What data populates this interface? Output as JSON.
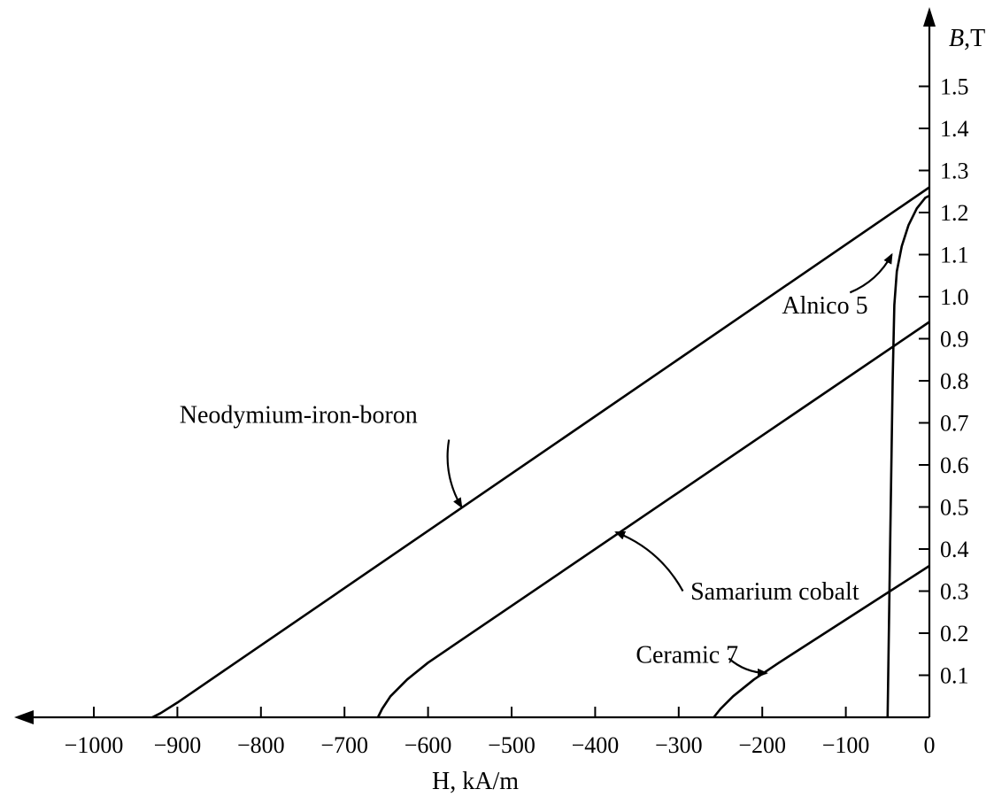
{
  "chart_data": {
    "type": "line",
    "xlabel": "H, kA/m",
    "ylabel_var": "B",
    "ylabel_unit": ",T",
    "xlim": [
      -1080,
      0
    ],
    "ylim": [
      0,
      1.6
    ],
    "grid": false,
    "x_ticks": [
      {
        "value": -1000,
        "label": "−1000"
      },
      {
        "value": -900,
        "label": "−900"
      },
      {
        "value": -800,
        "label": "−800"
      },
      {
        "value": -700,
        "label": "−700"
      },
      {
        "value": -600,
        "label": "−600"
      },
      {
        "value": -500,
        "label": "−500"
      },
      {
        "value": -400,
        "label": "−400"
      },
      {
        "value": -300,
        "label": "−300"
      },
      {
        "value": -200,
        "label": "−200"
      },
      {
        "value": -100,
        "label": "−100"
      },
      {
        "value": 0,
        "label": "0"
      }
    ],
    "y_ticks": [
      {
        "value": 0.1,
        "label": "0.1"
      },
      {
        "value": 0.2,
        "label": "0.2"
      },
      {
        "value": 0.3,
        "label": "0.3"
      },
      {
        "value": 0.4,
        "label": "0.4"
      },
      {
        "value": 0.5,
        "label": "0.5"
      },
      {
        "value": 0.6,
        "label": "0.6"
      },
      {
        "value": 0.7,
        "label": "0.7"
      },
      {
        "value": 0.8,
        "label": "0.8"
      },
      {
        "value": 0.9,
        "label": "0.9"
      },
      {
        "value": 1.0,
        "label": "1.0"
      },
      {
        "value": 1.1,
        "label": "1.1"
      },
      {
        "value": 1.2,
        "label": "1.2"
      },
      {
        "value": 1.3,
        "label": "1.3"
      },
      {
        "value": 1.4,
        "label": "1.4"
      },
      {
        "value": 1.5,
        "label": "1.5"
      }
    ],
    "series": [
      {
        "name": "Neodymium-iron-boron",
        "points": [
          [
            -930,
            0
          ],
          [
            -920,
            0.01
          ],
          [
            -900,
            0.035
          ],
          [
            0,
            1.26
          ]
        ]
      },
      {
        "name": "Samarium cobalt",
        "points": [
          [
            -660,
            0
          ],
          [
            -655,
            0.02
          ],
          [
            -645,
            0.05
          ],
          [
            -625,
            0.09
          ],
          [
            -600,
            0.13
          ],
          [
            0,
            0.94
          ]
        ]
      },
      {
        "name": "Ceramic 7",
        "points": [
          [
            -258,
            0
          ],
          [
            -250,
            0.02
          ],
          [
            -235,
            0.05
          ],
          [
            -210,
            0.09
          ],
          [
            -180,
            0.13
          ],
          [
            0,
            0.36
          ]
        ]
      },
      {
        "name": "Alnico 5",
        "points": [
          [
            -50,
            0
          ],
          [
            -47,
            0.4
          ],
          [
            -44,
            0.8
          ],
          [
            -42,
            0.98
          ],
          [
            -39,
            1.06
          ],
          [
            -33,
            1.12
          ],
          [
            -25,
            1.17
          ],
          [
            -15,
            1.21
          ],
          [
            -5,
            1.235
          ],
          [
            0,
            1.24
          ]
        ]
      }
    ],
    "annotations": [
      {
        "text": "Neodymium-iron-boron",
        "x": -755,
        "y": 0.7,
        "arrow_from": [
          -575,
          0.66
        ],
        "arrow_to": [
          -560,
          0.5
        ]
      },
      {
        "text": "Samarium cobalt",
        "x": -185,
        "y": 0.28,
        "arrow_from": [
          -295,
          0.3
        ],
        "arrow_to": [
          -375,
          0.44
        ]
      },
      {
        "text": "Ceramic 7",
        "x": -290,
        "y": 0.13,
        "arrow_from": [
          -240,
          0.14
        ],
        "arrow_to": [
          -195,
          0.105
        ]
      },
      {
        "text": "Alnico 5",
        "x": -125,
        "y": 0.96,
        "arrow_from": [
          -95,
          1.01
        ],
        "arrow_to": [
          -45,
          1.1
        ]
      }
    ]
  }
}
